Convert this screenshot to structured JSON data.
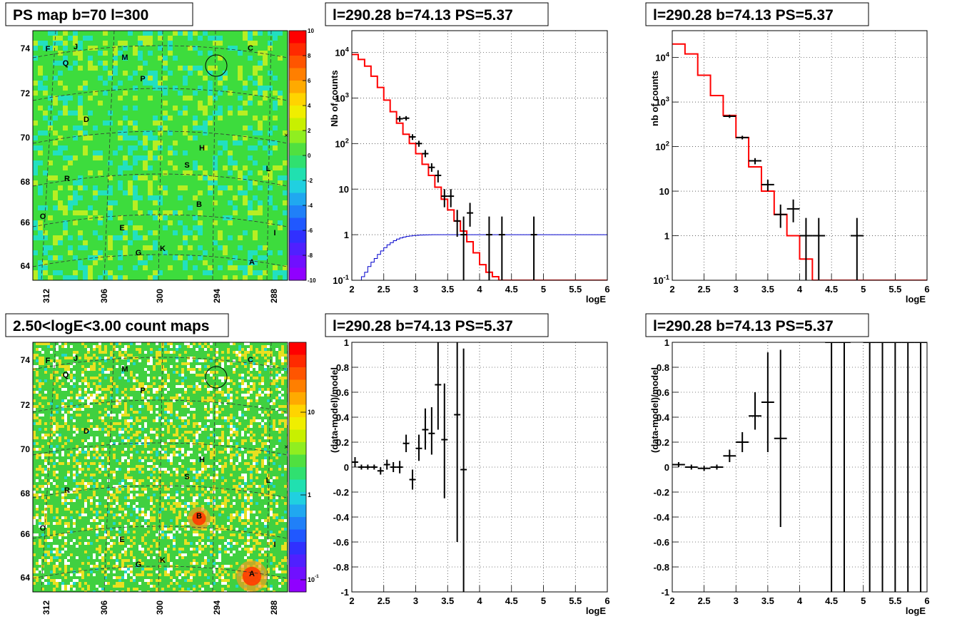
{
  "chart_data": [
    {
      "type": "heatmap",
      "title": "PS map b=70 l=300",
      "x_ticks": [
        "312",
        "306",
        "300",
        "294",
        "288"
      ],
      "y_ticks": [
        "74",
        "72",
        "70",
        "68",
        "66",
        "64"
      ],
      "colorbar": {
        "scale": "linear",
        "range": [
          -10,
          10
        ],
        "ticks": [
          "10",
          "8",
          "6",
          "4",
          "2",
          "0",
          "-2",
          "-4",
          "-6",
          "-8",
          "-10"
        ]
      },
      "sources": [
        "F",
        "J",
        "M",
        "C",
        "Q",
        "P",
        "D",
        "H",
        "S",
        "L",
        "R",
        "B",
        "O",
        "E",
        "I",
        "K",
        "G",
        "A"
      ],
      "colors": {
        "background": "#3ddc3d",
        "speckle_low": "#22e0c0",
        "speckle_high": "#b8ee22"
      }
    },
    {
      "type": "line",
      "title": "l=290.28 b=74.13 PS=5.37",
      "xlabel": "logE",
      "ylabel": "Nb of counts",
      "xlim": [
        2,
        6
      ],
      "ylim": [
        0.1,
        30000
      ],
      "yscale": "log",
      "x_ticks": [
        "2",
        "2.5",
        "3",
        "3.5",
        "4",
        "4.5",
        "5",
        "5.5",
        "6"
      ],
      "y_ticks": [
        "10^4",
        "10^3",
        "10^2",
        "10",
        "1",
        "10^-1"
      ],
      "series": [
        {
          "kind": "step",
          "color": "#ff0000",
          "bin_width": 0.1,
          "x": [
            2.0,
            2.1,
            2.2,
            2.3,
            2.4,
            2.5,
            2.6,
            2.7,
            2.8,
            2.9,
            3.0,
            3.1,
            3.2,
            3.3,
            3.4,
            3.5,
            3.6,
            3.7,
            3.8,
            3.9,
            4.0,
            4.1,
            4.2,
            4.3,
            4.4,
            4.5,
            4.6,
            4.7,
            4.8,
            4.9,
            5.0,
            5.1,
            5.2,
            5.3,
            5.4,
            5.5,
            5.6,
            5.7,
            5.8,
            5.9
          ],
          "values": [
            9000,
            7000,
            5000,
            3000,
            1700,
            900,
            500,
            280,
            160,
            100,
            60,
            35,
            20,
            11,
            6,
            3.5,
            2,
            1.2,
            0.7,
            0.4,
            0.22,
            0.15,
            0.12,
            0.1,
            0.1,
            0.1,
            0.1,
            0.1,
            0.1,
            0.1,
            0.1,
            0.1,
            0.1,
            0.1,
            0.1,
            0.1,
            0.1,
            0.1,
            0.1,
            0.1
          ]
        },
        {
          "kind": "step",
          "color": "#0000cc",
          "bin_width": 0.05,
          "x": [
            2.1,
            2.15,
            2.2,
            2.25,
            2.3,
            2.35,
            2.4,
            2.45,
            2.5,
            2.55,
            2.6,
            2.65,
            2.7,
            2.75,
            2.8,
            2.85,
            2.9,
            2.95,
            3.0,
            3.05,
            3.1,
            3.15,
            3.2,
            3.25,
            3.3
          ],
          "values": [
            0.1,
            0.12,
            0.15,
            0.2,
            0.25,
            0.3,
            0.37,
            0.44,
            0.52,
            0.6,
            0.67,
            0.74,
            0.8,
            0.85,
            0.89,
            0.92,
            0.94,
            0.96,
            0.97,
            0.98,
            0.985,
            0.99,
            0.995,
            1.0,
            1.0
          ],
          "tail": 1.0
        },
        {
          "kind": "points",
          "color": "#000000",
          "xerr": 0.05,
          "x": [
            2.75,
            2.85,
            2.95,
            3.05,
            3.15,
            3.25,
            3.35,
            3.45,
            3.55,
            3.65,
            3.75,
            3.85,
            4.15,
            4.35,
            4.85
          ],
          "y": [
            350,
            360,
            140,
            100,
            60,
            30,
            20,
            7,
            7,
            2,
            1,
            3,
            1,
            1,
            1
          ],
          "ylo": [
            300,
            320,
            120,
            85,
            50,
            24,
            14,
            4,
            4,
            0.9,
            0.1,
            1.5,
            0.1,
            0.1,
            0.1
          ],
          "yhi": [
            400,
            400,
            160,
            115,
            72,
            37,
            26,
            10,
            10,
            3.5,
            2.5,
            5,
            2.5,
            2.5,
            2.5
          ]
        }
      ]
    },
    {
      "type": "line",
      "title": "l=290.28 b=74.13 PS=5.37",
      "xlabel": "logE",
      "ylabel": "nb of counts",
      "xlim": [
        2,
        6
      ],
      "ylim": [
        0.1,
        40000
      ],
      "yscale": "log",
      "x_ticks": [
        "2",
        "2.5",
        "3",
        "3.5",
        "4",
        "4.5",
        "5",
        "5.5",
        "6"
      ],
      "y_ticks": [
        "10^4",
        "10^3",
        "10^2",
        "10",
        "1",
        "10^-1"
      ],
      "series": [
        {
          "kind": "step",
          "color": "#ff0000",
          "bin_width": 0.2,
          "x": [
            2.0,
            2.2,
            2.4,
            2.6,
            2.8,
            3.0,
            3.2,
            3.4,
            3.6,
            3.8,
            4.0,
            4.2,
            4.4,
            4.6,
            4.8,
            5.0,
            5.2,
            5.4,
            5.6,
            5.8
          ],
          "values": [
            20000,
            12000,
            4000,
            1400,
            500,
            160,
            35,
            10,
            3,
            1,
            0.3,
            0.1,
            0.1,
            0.1,
            0.1,
            0.1,
            0.1,
            0.1,
            0.1,
            0.1
          ]
        },
        {
          "kind": "points",
          "color": "#000000",
          "xerr": 0.1,
          "x": [
            2.9,
            3.1,
            3.3,
            3.5,
            3.7,
            3.9,
            4.1,
            4.3,
            4.9
          ],
          "y": [
            480,
            160,
            48,
            14,
            3,
            4,
            1,
            1,
            1
          ],
          "ylo": [
            440,
            145,
            40,
            10,
            1.5,
            2,
            0.1,
            0.1,
            0.1
          ],
          "yhi": [
            520,
            175,
            55,
            18,
            5,
            6.5,
            2.5,
            2.5,
            2.5
          ]
        }
      ]
    },
    {
      "type": "heatmap",
      "title": "2.50<logE<3.00 count maps",
      "x_ticks": [
        "312",
        "306",
        "300",
        "294",
        "288"
      ],
      "y_ticks": [
        "74",
        "72",
        "70",
        "68",
        "66",
        "64"
      ],
      "colorbar": {
        "scale": "log",
        "ticks": [
          "10",
          "1",
          "10^-1"
        ]
      },
      "sources": [
        "F",
        "J",
        "M",
        "C",
        "Q",
        "P",
        "D",
        "H",
        "S",
        "L",
        "R",
        "B",
        "O",
        "E",
        "I",
        "K",
        "G",
        "A"
      ],
      "colors": {
        "background": "#40d040",
        "speckle_low": "#ffffff",
        "speckle_high": "#e8e020",
        "hot": "#ff3a00"
      }
    },
    {
      "type": "scatter",
      "title": "l=290.28 b=74.13 PS=5.37",
      "xlabel": "logE",
      "ylabel": "(data-model)/model",
      "xlim": [
        2,
        6
      ],
      "ylim": [
        -1,
        1
      ],
      "x_ticks": [
        "2",
        "2.5",
        "3",
        "3.5",
        "4",
        "4.5",
        "5",
        "5.5",
        "6"
      ],
      "y_ticks": [
        "1",
        "0.8",
        "0.6",
        "0.4",
        "0.2",
        "0",
        "-0.2",
        "-0.4",
        "-0.6",
        "-0.8",
        "-1"
      ],
      "series": [
        {
          "kind": "points",
          "color": "#000000",
          "xerr": 0.05,
          "x": [
            2.05,
            2.15,
            2.25,
            2.35,
            2.45,
            2.55,
            2.65,
            2.75,
            2.85,
            2.95,
            3.05,
            3.15,
            3.25,
            3.35,
            3.45,
            3.65,
            3.75
          ],
          "y": [
            0.04,
            0.0,
            0.0,
            0.0,
            -0.03,
            0.02,
            0.0,
            0.0,
            0.19,
            -0.1,
            0.15,
            0.3,
            0.27,
            0.66,
            0.22,
            0.42,
            -0.02
          ],
          "ylo": [
            0.0,
            -0.02,
            -0.02,
            -0.02,
            -0.06,
            -0.02,
            -0.04,
            -0.05,
            0.12,
            -0.18,
            0.05,
            0.14,
            0.1,
            0.3,
            -0.25,
            -0.6,
            -1.0
          ],
          "yhi": [
            0.08,
            0.02,
            0.02,
            0.02,
            0.0,
            0.06,
            0.04,
            0.05,
            0.26,
            -0.02,
            0.26,
            0.47,
            0.48,
            1.0,
            0.67,
            1.0,
            0.95
          ]
        }
      ]
    },
    {
      "type": "scatter",
      "title": "l=290.28 b=74.13 PS=5.37",
      "xlabel": "logE",
      "ylabel": "(data-model)/model",
      "xlim": [
        2,
        6
      ],
      "ylim": [
        -1,
        1
      ],
      "x_ticks": [
        "2",
        "2.5",
        "3",
        "3.5",
        "4",
        "4.5",
        "5",
        "5.5",
        "6"
      ],
      "y_ticks": [
        "1",
        "0.8",
        "0.6",
        "0.4",
        "0.2",
        "0",
        "-0.2",
        "-0.4",
        "-0.6",
        "-0.8",
        "-1"
      ],
      "series": [
        {
          "kind": "points",
          "color": "#000000",
          "xerr": 0.1,
          "x": [
            2.1,
            2.3,
            2.5,
            2.7,
            2.9,
            3.1,
            3.3,
            3.5,
            3.7,
            4.5,
            4.7,
            5.1,
            5.3,
            5.5,
            5.7,
            5.9
          ],
          "y": [
            0.02,
            0.0,
            -0.01,
            0.0,
            0.09,
            0.2,
            0.41,
            0.52,
            0.23,
            1,
            1,
            1,
            1,
            1,
            1,
            1
          ],
          "ylo": [
            0.0,
            -0.02,
            -0.03,
            -0.02,
            0.04,
            0.12,
            0.3,
            0.12,
            -0.48,
            -1,
            -1,
            -1,
            -1,
            -1,
            -1,
            -1
          ],
          "yhi": [
            0.04,
            0.02,
            0.01,
            0.02,
            0.14,
            0.28,
            0.6,
            0.92,
            0.94,
            1,
            1,
            1,
            1,
            1,
            1,
            1
          ]
        }
      ]
    }
  ]
}
